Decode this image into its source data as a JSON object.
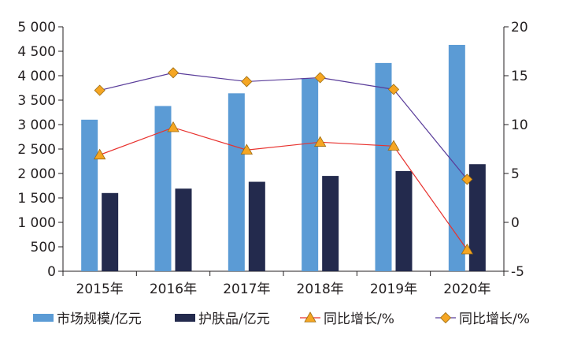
{
  "chart_data": {
    "type": "bar",
    "categories": [
      "2015年",
      "2016年",
      "2017年",
      "2018年",
      "2019年",
      "2020年"
    ],
    "series": [
      {
        "name": "市场规模/亿元",
        "kind": "bar",
        "axis": "left",
        "color": "#5b9bd5",
        "values": [
          3100,
          3380,
          3640,
          3940,
          4260,
          4630
        ]
      },
      {
        "name": "护肤品/亿元",
        "kind": "bar",
        "axis": "left",
        "color": "#232a4d",
        "values": [
          1600,
          1690,
          1830,
          1950,
          2050,
          2190
        ]
      },
      {
        "name": "同比增长/%",
        "kind": "line",
        "axis": "right",
        "color": "#e8322e",
        "marker": "triangle",
        "marker_color": "#f5a623",
        "values": [
          6.9,
          9.7,
          7.4,
          8.2,
          7.8,
          -2.8
        ]
      },
      {
        "name": "同比增长/%",
        "kind": "line",
        "axis": "right",
        "color": "#5a3d9a",
        "marker": "diamond",
        "marker_color": "#f5a623",
        "values": [
          13.5,
          15.3,
          14.4,
          14.8,
          13.6,
          4.4
        ]
      }
    ],
    "y_left": {
      "ylim": [
        0,
        5000
      ],
      "ticks": [
        0,
        500,
        1000,
        1500,
        2000,
        2500,
        3000,
        3500,
        4000,
        4500,
        5000
      ],
      "tick_labels": [
        "0",
        "500",
        "1 000",
        "1 500",
        "2 000",
        "2 500",
        "3 000",
        "3 500",
        "4 000",
        "4 500",
        "5 000"
      ]
    },
    "y_right": {
      "ylim": [
        -5,
        20
      ],
      "ticks": [
        -5,
        0,
        5,
        10,
        15,
        20
      ],
      "tick_labels": [
        "-5",
        "0",
        "5",
        "10",
        "15",
        "20"
      ]
    },
    "grid": false,
    "legend_position": "bottom",
    "title": "",
    "xlabel": "",
    "ylabel": ""
  }
}
